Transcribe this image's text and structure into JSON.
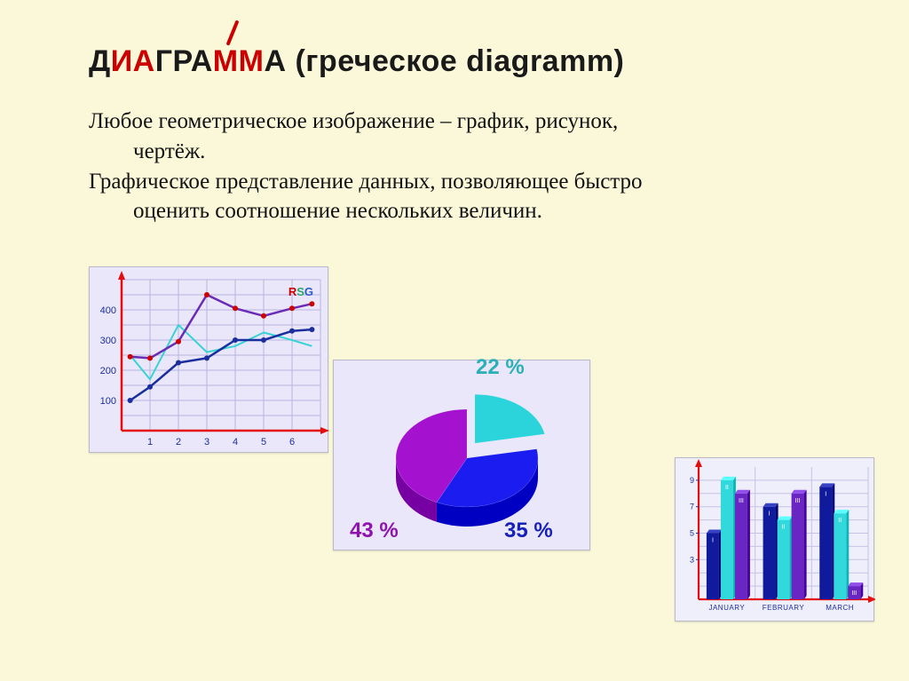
{
  "page": {
    "background_color": "#faf8d8"
  },
  "title": {
    "parts": [
      {
        "t": "Д",
        "c": "black"
      },
      {
        "t": "И",
        "c": "red"
      },
      {
        "t": "А",
        "c": "red"
      },
      {
        "t": "Г",
        "c": "black"
      },
      {
        "t": "Р",
        "c": "black"
      },
      {
        "t": "А",
        "c": "black"
      },
      {
        "t": "М",
        "c": "red"
      },
      {
        "t": "М",
        "c": "red"
      },
      {
        "t": "А",
        "c": "black"
      }
    ],
    "sub": " (греческое diagramm)",
    "font_family": "Comic Sans MS",
    "font_size_pt": 26,
    "colors": {
      "black": "#1a1a1a",
      "red": "#cc0000"
    }
  },
  "body": {
    "line1a": "Любое геометрическое изображение – график, рисунок,",
    "line1b": "чертёж.",
    "line2a": " Графическое представление данных, позволяющее быстро",
    "line2b": "оценить соотношение нескольких величин.",
    "font_size_pt": 19,
    "color": "#111111"
  },
  "line_chart": {
    "type": "line",
    "panel_bg": "#e9e7f9",
    "grid_color": "#b8b5e0",
    "axis_color": "#e50e0e",
    "legend_text": "RSG",
    "legend_colors": [
      "#cc0000",
      "#2aa86b",
      "#2a5acc"
    ],
    "y_ticks": [
      100,
      200,
      300,
      400
    ],
    "x_ticks": [
      1,
      2,
      3,
      4,
      5,
      6
    ],
    "ylim": [
      0,
      500
    ],
    "xlim": [
      0,
      7
    ],
    "series": [
      {
        "name": "cyan",
        "color": "#38d3d6",
        "width": 2,
        "marker": false,
        "points": [
          [
            0.3,
            250
          ],
          [
            1,
            170
          ],
          [
            2,
            350
          ],
          [
            3,
            260
          ],
          [
            4,
            280
          ],
          [
            5,
            325
          ],
          [
            6,
            300
          ],
          [
            6.7,
            280
          ]
        ]
      },
      {
        "name": "purple",
        "color": "#6a2bb8",
        "width": 2.5,
        "marker": true,
        "marker_color": "#cc0000",
        "points": [
          [
            0.3,
            245
          ],
          [
            1,
            240
          ],
          [
            2,
            295
          ],
          [
            3,
            450
          ],
          [
            4,
            405
          ],
          [
            5,
            380
          ],
          [
            6,
            405
          ],
          [
            6.7,
            420
          ]
        ]
      },
      {
        "name": "navy",
        "color": "#1b2e9e",
        "width": 2.5,
        "marker": true,
        "marker_color": "#1b2e9e",
        "points": [
          [
            0.3,
            100
          ],
          [
            1,
            145
          ],
          [
            2,
            225
          ],
          [
            3,
            240
          ],
          [
            4,
            300
          ],
          [
            5,
            300
          ],
          [
            6,
            330
          ],
          [
            6.7,
            335
          ]
        ]
      }
    ]
  },
  "pie_chart": {
    "type": "pie",
    "panel_bg": "#e9e7f9",
    "slices": [
      {
        "label": "22 %",
        "value": 22,
        "color": "#2bd4db",
        "label_color": "#2ab0b6"
      },
      {
        "label": "35 %",
        "value": 35,
        "color": "#1a1cf0",
        "label_color": "#1720b8"
      },
      {
        "label": "43 %",
        "value": 43,
        "color": "#a412cf",
        "label_color": "#8f12b0"
      }
    ],
    "explode_index": 0,
    "label_font_size": 24
  },
  "bar_chart": {
    "type": "grouped-bar",
    "panel_bg": "#efeefb",
    "grid_color": "#c6c3e6",
    "axis_color": "#e50e0e",
    "y_ticks": [
      3,
      5,
      7,
      9
    ],
    "ylim": [
      0,
      10
    ],
    "categories": [
      "JANUARY",
      "FEBRUARY",
      "MARCH"
    ],
    "groups": [
      {
        "label": "I",
        "color": "#0f1a9c",
        "values": [
          5.0,
          7.0,
          8.5
        ]
      },
      {
        "label": "II",
        "color": "#32d9dc",
        "values": [
          9.0,
          6.0,
          6.5
        ]
      },
      {
        "label": "III",
        "color": "#6926c2",
        "values": [
          8.0,
          8.0,
          1.0
        ]
      }
    ],
    "bar_width": 0.22,
    "label_font_size": 8,
    "category_font_size": 8
  }
}
